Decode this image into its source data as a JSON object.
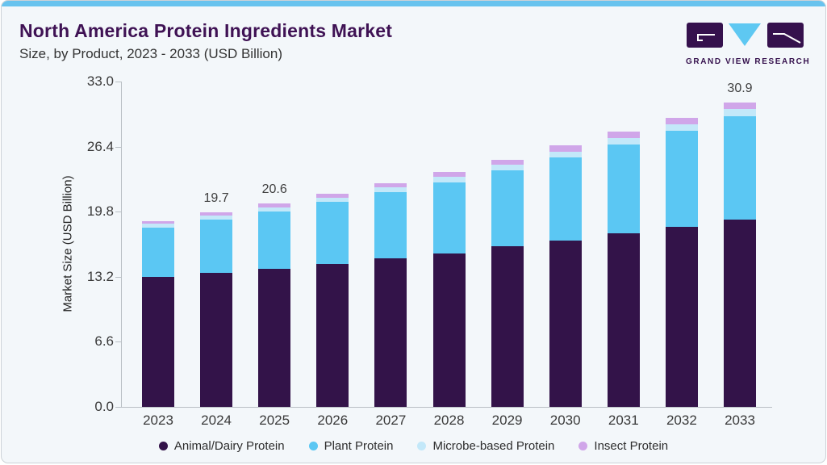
{
  "header": {
    "title": "North America Protein Ingredients Market",
    "subtitle": "Size, by Product, 2023 - 2033 (USD Billion)",
    "brand": {
      "name": "GRAND VIEW RESEARCH"
    }
  },
  "chart_data": {
    "type": "bar",
    "stacked": true,
    "title": "North America Protein Ingredients Market Size, by Product, 2023 - 2033 (USD Billion)",
    "categories": [
      "2023",
      "2024",
      "2025",
      "2026",
      "2027",
      "2028",
      "2029",
      "2030",
      "2031",
      "2032",
      "2033"
    ],
    "series": [
      {
        "name": "Animal/Dairy Protein",
        "color": "#331349",
        "values": [
          13.2,
          13.6,
          14.0,
          14.5,
          15.1,
          15.6,
          16.3,
          16.9,
          17.6,
          18.3,
          19.0
        ]
      },
      {
        "name": "Plant Protein",
        "color": "#5bc7f3",
        "values": [
          5.0,
          5.4,
          5.8,
          6.3,
          6.7,
          7.2,
          7.7,
          8.4,
          9.0,
          9.7,
          10.5
        ]
      },
      {
        "name": "Microbe-based Protein",
        "color": "#c3e8f9",
        "values": [
          0.35,
          0.4,
          0.45,
          0.45,
          0.5,
          0.55,
          0.6,
          0.6,
          0.7,
          0.7,
          0.75
        ]
      },
      {
        "name": "Insect Protein",
        "color": "#d0a6e9",
        "values": [
          0.25,
          0.3,
          0.35,
          0.35,
          0.4,
          0.45,
          0.5,
          0.6,
          0.6,
          0.65,
          0.65
        ]
      }
    ],
    "totals": [
      18.8,
      19.7,
      20.6,
      21.6,
      22.7,
      23.8,
      25.1,
      26.5,
      27.9,
      29.35,
      30.9
    ],
    "bar_total_labels": [
      "",
      "19.7",
      "20.6",
      "",
      "",
      "",
      "",
      "",
      "",
      "",
      "30.9"
    ],
    "ylabel": "Market Size (USD Billion)",
    "xlabel": "",
    "yticks": [
      "33.0",
      "26.4",
      "19.8",
      "13.2",
      "6.6",
      "0.0"
    ],
    "ylim": [
      0,
      33
    ],
    "grid": false,
    "legend_position": "bottom"
  },
  "colors": {
    "card_background": "#f3f7fa",
    "top_accent_bar": "#68c3ee",
    "title_text": "#3f1254",
    "subtitle_text": "#333333",
    "axis_line": "#b9bfc4",
    "tick_text": "#3a3a3a",
    "logo_purple": "#35114d",
    "logo_blue": "#5ec8f2"
  }
}
